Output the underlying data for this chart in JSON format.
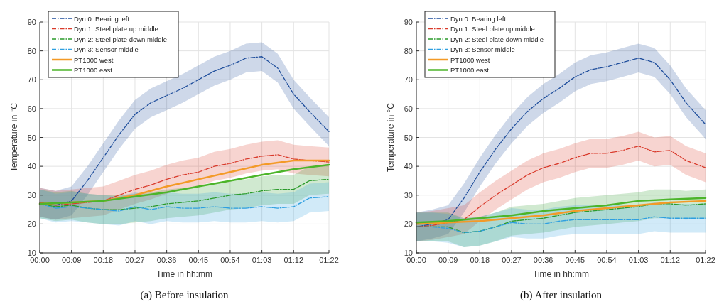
{
  "chart_data": [
    {
      "type": "line",
      "title": "(a) Before insulation",
      "xlabel": "Time in hh:mm",
      "ylabel": "Temperature in °C",
      "x": [
        0,
        0.075,
        0.15,
        0.225,
        0.3,
        0.375,
        0.45,
        0.525,
        0.6,
        0.675,
        0.75,
        0.825,
        0.9,
        0.975,
        1.05,
        1.125,
        1.2,
        1.275,
        1.367
      ],
      "xlim": [
        0,
        1.367
      ],
      "xticks": [
        {
          "value": 0,
          "label": "00:00"
        },
        {
          "value": 0.15,
          "label": "00:09"
        },
        {
          "value": 0.3,
          "label": "00:18"
        },
        {
          "value": 0.45,
          "label": "00:27"
        },
        {
          "value": 0.6,
          "label": "00:36"
        },
        {
          "value": 0.75,
          "label": "00:45"
        },
        {
          "value": 0.9,
          "label": "00:54"
        },
        {
          "value": 1.05,
          "label": "01:03"
        },
        {
          "value": 1.2,
          "label": "01:12"
        },
        {
          "value": 1.367,
          "label": "01:22"
        }
      ],
      "ylim": [
        10,
        90
      ],
      "yticks": [
        10,
        20,
        30,
        40,
        50,
        60,
        70,
        80,
        90
      ],
      "grid": true,
      "legend": "top left",
      "series": [
        {
          "name": "Dyn 0: Bearing left",
          "color": "#1f4e9c",
          "line_style": "dashed",
          "values": [
            27.5,
            26.5,
            28,
            35,
            43,
            51,
            58,
            62,
            64.5,
            67,
            70,
            73,
            75,
            77.5,
            78,
            74,
            65,
            59,
            52
          ],
          "lower": [
            22.5,
            21.5,
            23,
            30,
            38,
            46,
            53,
            57,
            59.5,
            62,
            65,
            68,
            70,
            72.5,
            73,
            69,
            60,
            54,
            47
          ],
          "upper": [
            32.5,
            31.5,
            33,
            40,
            48,
            56,
            63,
            67,
            69.5,
            72,
            75,
            78,
            80,
            82.5,
            83,
            79,
            70,
            64,
            57
          ]
        },
        {
          "name": "Dyn 1: Steel plate up middle",
          "color": "#d93a2b",
          "line_style": "dashed",
          "values": [
            27.5,
            26.5,
            27,
            27.5,
            28,
            30,
            32,
            33.5,
            35.5,
            37,
            38,
            40,
            41,
            42.5,
            43.5,
            44,
            42.5,
            42,
            41.5
          ],
          "lower": [
            22.5,
            21.5,
            22,
            22.5,
            23,
            25,
            27,
            28.5,
            30.5,
            32,
            33,
            35,
            36,
            37.5,
            38.5,
            39,
            37.5,
            37,
            36.5
          ],
          "upper": [
            32.5,
            31.5,
            32,
            32.5,
            33,
            35,
            37,
            38.5,
            40.5,
            42,
            43,
            45,
            46,
            47.5,
            48.5,
            49,
            47.5,
            47,
            46.5
          ]
        },
        {
          "name": "Dyn 2: Steel plate down middle",
          "color": "#2a9a2a",
          "line_style": "dashed",
          "values": [
            27,
            26,
            26.5,
            25.5,
            25,
            25,
            25.5,
            26,
            27,
            27.5,
            28,
            29,
            30,
            30.5,
            31.5,
            32,
            32,
            35,
            35.5
          ],
          "lower": [
            22,
            21,
            21.5,
            20.5,
            20,
            20,
            20.5,
            21,
            22,
            22.5,
            23,
            24,
            25,
            25.5,
            26.5,
            27,
            27,
            30,
            30.5
          ],
          "upper": [
            32,
            31,
            31.5,
            30.5,
            30,
            30,
            30.5,
            31,
            32,
            32.5,
            33,
            34,
            35,
            35.5,
            36.5,
            37,
            37,
            40,
            40.5
          ]
        },
        {
          "name": "Dyn 3: Sensor middle",
          "color": "#2e9fe0",
          "line_style": "dashed",
          "values": [
            27,
            25.5,
            26,
            25.5,
            25,
            24.5,
            26,
            25,
            26,
            25.5,
            25.5,
            26,
            25.5,
            25.5,
            26,
            25.5,
            26,
            29,
            29.5
          ],
          "lower": [
            22,
            20.5,
            21,
            20.5,
            20,
            19.5,
            21,
            20,
            21,
            20.5,
            20.5,
            21,
            20.5,
            20.5,
            21,
            20.5,
            21,
            24,
            24.5
          ],
          "upper": [
            32,
            30.5,
            31,
            30.5,
            30,
            29.5,
            31,
            30,
            31,
            30.5,
            30.5,
            31,
            30.5,
            30.5,
            31,
            30.5,
            31,
            34,
            34.5
          ]
        },
        {
          "name": "PT1000 west",
          "color": "#f39a27",
          "line_style": "solid",
          "x": [
            0,
            0.15,
            0.3,
            0.45,
            0.6,
            0.75,
            0.9,
            1.05,
            1.2,
            1.367
          ],
          "values": [
            27,
            27.5,
            28,
            30,
            33,
            35.5,
            38,
            40.5,
            42,
            42
          ]
        },
        {
          "name": "PT1000 east",
          "color": "#4cb52a",
          "line_style": "solid",
          "x": [
            0,
            0.15,
            0.3,
            0.45,
            0.6,
            0.75,
            0.9,
            1.05,
            1.2,
            1.367
          ],
          "values": [
            27,
            27.5,
            28,
            29.5,
            31,
            33,
            35,
            37,
            39,
            40.5
          ]
        }
      ]
    },
    {
      "type": "line",
      "title": "(b) After insulation",
      "xlabel": "Time in hh:mm",
      "ylabel": "Temperature in °C",
      "x": [
        0,
        0.075,
        0.15,
        0.225,
        0.3,
        0.375,
        0.45,
        0.525,
        0.6,
        0.675,
        0.75,
        0.825,
        0.9,
        0.975,
        1.05,
        1.125,
        1.2,
        1.275,
        1.367
      ],
      "xlim": [
        0,
        1.367
      ],
      "xticks": [
        {
          "value": 0,
          "label": "00:00"
        },
        {
          "value": 0.15,
          "label": "00:09"
        },
        {
          "value": 0.3,
          "label": "00:18"
        },
        {
          "value": 0.45,
          "label": "00:27"
        },
        {
          "value": 0.6,
          "label": "00:36"
        },
        {
          "value": 0.75,
          "label": "00:45"
        },
        {
          "value": 0.9,
          "label": "00:54"
        },
        {
          "value": 1.05,
          "label": "01:03"
        },
        {
          "value": 1.2,
          "label": "01:12"
        },
        {
          "value": 1.367,
          "label": "01:22"
        }
      ],
      "ylim": [
        10,
        90
      ],
      "yticks": [
        10,
        20,
        30,
        40,
        50,
        60,
        70,
        80,
        90
      ],
      "grid": true,
      "legend": "top left",
      "series": [
        {
          "name": "Dyn 0: Bearing left",
          "color": "#1f4e9c",
          "line_style": "dashed",
          "values": [
            19,
            20,
            21.5,
            29,
            38,
            46,
            53,
            59,
            63.5,
            67,
            71,
            73.5,
            74.5,
            76,
            77.5,
            76,
            70,
            62,
            54.5
          ],
          "lower": [
            14,
            15,
            16.5,
            24,
            33,
            41,
            48,
            54,
            58.5,
            62,
            66,
            68.5,
            69.5,
            71,
            72.5,
            71,
            65,
            57,
            49.5
          ],
          "upper": [
            24,
            25,
            26.5,
            34,
            43,
            51,
            58,
            64,
            68.5,
            72,
            76,
            78.5,
            79.5,
            81,
            82.5,
            81,
            75,
            67,
            59.5
          ]
        },
        {
          "name": "Dyn 1: Steel plate up middle",
          "color": "#d93a2b",
          "line_style": "dashed",
          "values": [
            19,
            19.5,
            20.5,
            21.5,
            26,
            30,
            33.5,
            37,
            39.5,
            41,
            43,
            44.5,
            44.5,
            45.5,
            47,
            45,
            45.5,
            42,
            39.5
          ],
          "lower": [
            14,
            14.5,
            15.5,
            16.5,
            21,
            25,
            28.5,
            32,
            34.5,
            36,
            38,
            39.5,
            39.5,
            40.5,
            42,
            40,
            40.5,
            37,
            34.5
          ],
          "upper": [
            24,
            24.5,
            25.5,
            26.5,
            31,
            35,
            38.5,
            42,
            44.5,
            46,
            48,
            49.5,
            49.5,
            50.5,
            52,
            50,
            50.5,
            47,
            44.5
          ]
        },
        {
          "name": "Dyn 2: Steel plate down middle",
          "color": "#2a9a2a",
          "line_style": "dashed",
          "values": [
            19,
            19,
            19,
            17,
            17.5,
            19,
            21,
            21.5,
            22,
            23,
            24,
            24.5,
            25,
            25.5,
            26,
            27,
            27,
            26.5,
            27
          ],
          "lower": [
            14,
            14,
            14,
            12,
            12.5,
            14,
            16,
            16.5,
            17,
            18,
            19,
            19.5,
            20,
            20.5,
            21,
            22,
            22,
            21.5,
            22
          ],
          "upper": [
            24,
            24,
            24,
            22,
            22.5,
            24,
            26,
            26.5,
            27,
            28,
            29,
            29.5,
            30,
            30.5,
            31,
            32,
            32,
            31.5,
            32
          ]
        },
        {
          "name": "Dyn 3: Sensor middle",
          "color": "#2e9fe0",
          "line_style": "dashed",
          "values": [
            19,
            19,
            18.5,
            17,
            17.5,
            19,
            20.5,
            20,
            20,
            21,
            21.5,
            21.5,
            21.5,
            21.5,
            21.5,
            22.5,
            22,
            22,
            22
          ],
          "lower": [
            14,
            14,
            13.5,
            12,
            12.5,
            14,
            15.5,
            15,
            15,
            16,
            16.5,
            16.5,
            16.5,
            16.5,
            16.5,
            17.5,
            17,
            17,
            17
          ],
          "upper": [
            24,
            24,
            23.5,
            22,
            22.5,
            24,
            25.5,
            25,
            25,
            26,
            26.5,
            26.5,
            26.5,
            26.5,
            26.5,
            27.5,
            27,
            27,
            27
          ]
        },
        {
          "name": "PT1000 west",
          "color": "#f39a27",
          "line_style": "solid",
          "x": [
            0,
            0.15,
            0.3,
            0.45,
            0.6,
            0.75,
            0.9,
            1.05,
            1.2,
            1.367
          ],
          "values": [
            20,
            20.5,
            21,
            22,
            23,
            24.5,
            25.5,
            26.5,
            27.5,
            28
          ]
        },
        {
          "name": "PT1000 east",
          "color": "#4cb52a",
          "line_style": "solid",
          "x": [
            0,
            0.15,
            0.3,
            0.45,
            0.6,
            0.75,
            0.9,
            1.05,
            1.2,
            1.367
          ],
          "values": [
            20.5,
            21,
            22,
            23,
            24.5,
            25.5,
            26.5,
            28,
            28.5,
            29
          ]
        }
      ]
    }
  ]
}
